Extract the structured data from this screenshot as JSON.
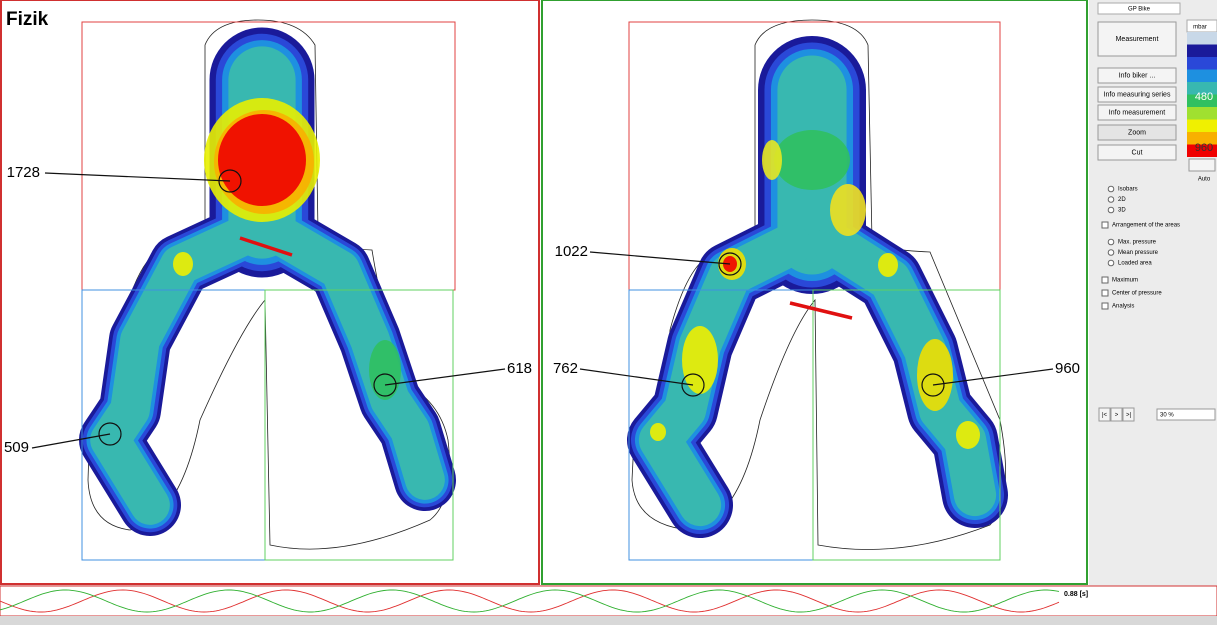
{
  "left_map": {
    "title": "Fizik",
    "markers": [
      "1728",
      "509",
      "618"
    ]
  },
  "right_map": {
    "markers": [
      "1022",
      "762",
      "960"
    ]
  },
  "sidebar": {
    "title": "GP Bike",
    "buttons": [
      "Measurement",
      "Info biker ...",
      "Info measuring series",
      "Info measurement",
      "Zoom",
      "Cut"
    ],
    "scale": {
      "unit": "mbar",
      "labels": [
        "480",
        "960"
      ],
      "auto": "Auto"
    },
    "display_options": [
      "Isobars",
      "2D",
      "3D"
    ],
    "arrangement": "Arrangement of the areas",
    "pressure_options": [
      "Max. pressure",
      "Mean pressure",
      "Loaded area"
    ],
    "checks": [
      "Maximum",
      "Center of pressure",
      "Analysis"
    ],
    "nav": [
      "|<",
      ">",
      ">|"
    ],
    "zoom": "30 %"
  },
  "timeline": {
    "time": "0.88 [s]"
  }
}
